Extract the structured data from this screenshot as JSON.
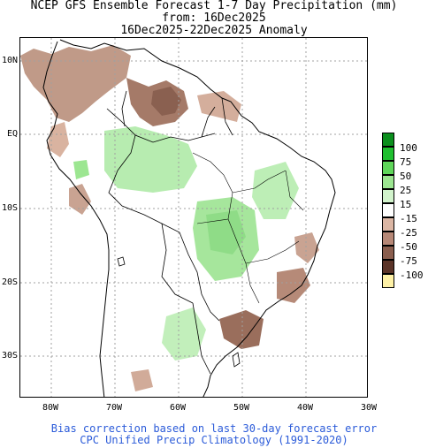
{
  "title": {
    "line1": "NCEP GFS Ensemble Forecast 1-7 Day Precipitation (mm)",
    "line2": "from: 16Dec2025",
    "line3": "16Dec2025-22Dec2025 Anomaly"
  },
  "map": {
    "lat_labels": [
      "10N",
      "EQ",
      "10S",
      "20S",
      "30S"
    ],
    "lon_labels": [
      "80W",
      "70W",
      "60W",
      "50W",
      "40W",
      "30W"
    ],
    "colors": {
      "dry_light": "#d9b3a0",
      "dry_mid": "#b78a78",
      "dry_dark": "#8a6050",
      "wet_light": "#b7ecb0",
      "wet_mid": "#8fdc87",
      "coast": "#000000",
      "grid": "#9a9a9a"
    }
  },
  "legend": {
    "items": [
      {
        "label": "100",
        "color": "#0b8f1d"
      },
      {
        "label": "75",
        "color": "#1fbf2f"
      },
      {
        "label": "50",
        "color": "#5fd65a"
      },
      {
        "label": "25",
        "color": "#9ce691"
      },
      {
        "label": "15",
        "color": "#d2f4cc"
      },
      {
        "label": "-15",
        "color": "#ffffff"
      },
      {
        "label": "-25",
        "color": "#dbb6a4"
      },
      {
        "label": "-50",
        "color": "#b78877"
      },
      {
        "label": "-75",
        "color": "#8a5e4e"
      },
      {
        "label": "-100",
        "color": "#5b3428"
      },
      {
        "label": "",
        "color": "#fef1a6"
      }
    ]
  },
  "footer": {
    "line1": "Bias correction based on last 30-day forecast error",
    "line2": "CPC Unified Precip Climatology (1991-2020)"
  }
}
